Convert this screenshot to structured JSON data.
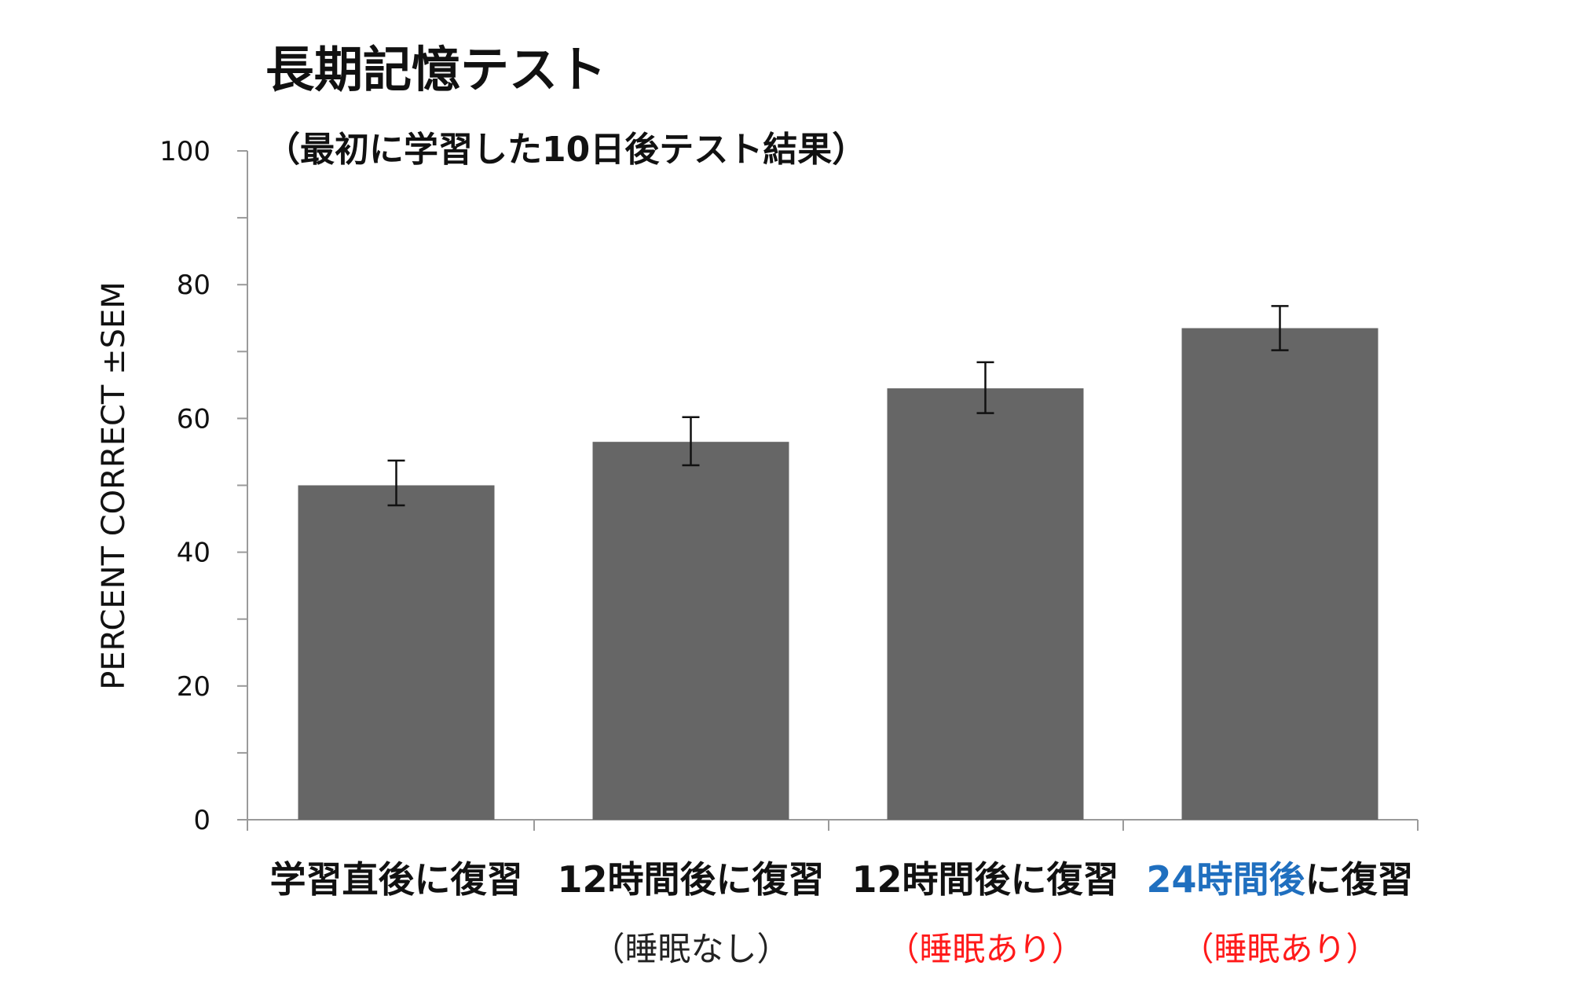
{
  "chart_data": {
    "type": "bar",
    "title": "長期記憶テスト",
    "subtitle": "（最初に学習した10日後テスト結果）",
    "ylabel": "PERCENT CORRECT ±SEM",
    "xlabel": "",
    "ylim": [
      0,
      100
    ],
    "yticks": [
      0,
      20,
      40,
      60,
      80,
      100
    ],
    "ytick_labels": [
      "0",
      "20",
      "40",
      "60",
      "80",
      "100"
    ],
    "grid": false,
    "legend": "none",
    "bar_color": "#666666",
    "categories": [
      {
        "parts": [
          {
            "text": "学習直後に復習",
            "color": "#111111"
          }
        ],
        "note": ""
      },
      {
        "parts": [
          {
            "text": "12時間後に復習",
            "color": "#111111"
          }
        ],
        "note": "（睡眠なし）",
        "note_color": "#222222"
      },
      {
        "parts": [
          {
            "text": "12時間後に復習",
            "color": "#111111"
          }
        ],
        "note": "（睡眠あり）",
        "note_color": "#ff1a1a"
      },
      {
        "parts": [
          {
            "text": "24時間後",
            "color": "#1f6fbf"
          },
          {
            "text": "に復習",
            "color": "#111111"
          }
        ],
        "note": "（睡眠あり）",
        "note_color": "#ff1a1a"
      }
    ],
    "values": [
      50,
      56.5,
      64.5,
      73.5
    ],
    "error": [
      [
        47,
        53.7
      ],
      [
        53,
        60.2
      ],
      [
        60.8,
        68.4
      ],
      [
        70.2,
        76.8
      ]
    ]
  }
}
